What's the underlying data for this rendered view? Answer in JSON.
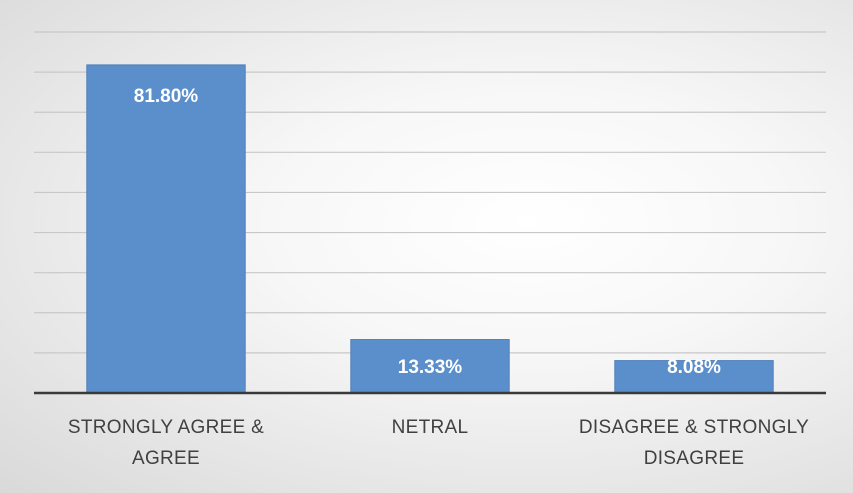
{
  "chart_data": {
    "type": "bar",
    "categories": [
      "STRONGLY AGREE & AGREE",
      "NETRAL",
      "DISAGREE & STRONGLY DISAGREE"
    ],
    "values": [
      81.8,
      13.33,
      8.08
    ],
    "value_labels": [
      "81.80%",
      "13.33%",
      "8.08%"
    ],
    "color": "#5b8fcc",
    "ylim": [
      0,
      90
    ],
    "yticks": [
      0,
      10,
      20,
      30,
      40,
      50,
      60,
      70,
      80,
      90
    ],
    "grid": true
  }
}
